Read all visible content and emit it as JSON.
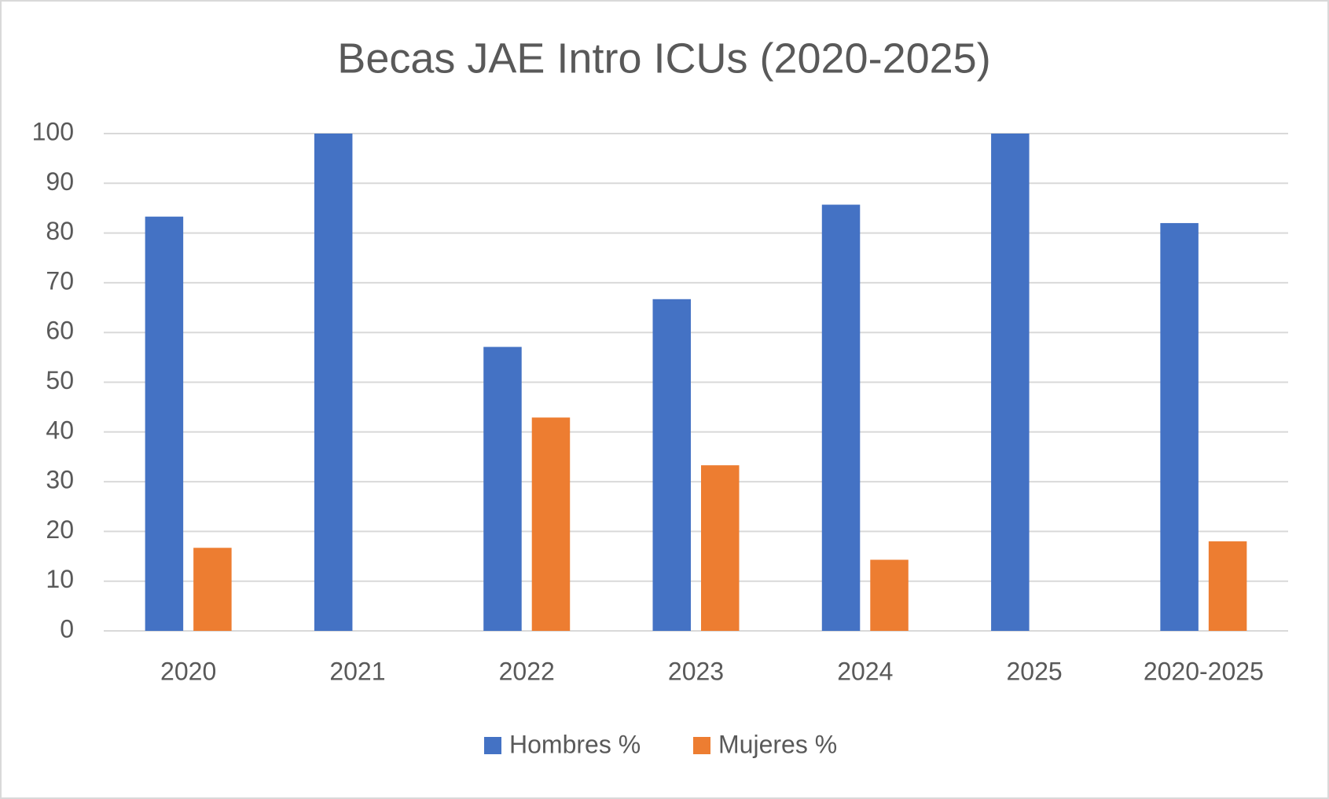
{
  "chart_data": {
    "type": "bar",
    "title": "Becas JAE Intro ICUs (2020-2025)",
    "categories": [
      "2020",
      "2021",
      "2022",
      "2023",
      "2024",
      "2025",
      "2020-2025"
    ],
    "series": [
      {
        "name": "Hombres %",
        "color": "#4472c4",
        "values": [
          83.3,
          100,
          57.1,
          66.7,
          85.7,
          100,
          82
        ]
      },
      {
        "name": "Mujeres %",
        "color": "#ed7d31",
        "values": [
          16.7,
          0,
          42.9,
          33.3,
          14.3,
          0,
          18
        ]
      }
    ],
    "ylim": [
      0,
      100
    ],
    "yticks": [
      0,
      10,
      20,
      30,
      40,
      50,
      60,
      70,
      80,
      90,
      100
    ],
    "grid": true,
    "legend": "bottom"
  }
}
